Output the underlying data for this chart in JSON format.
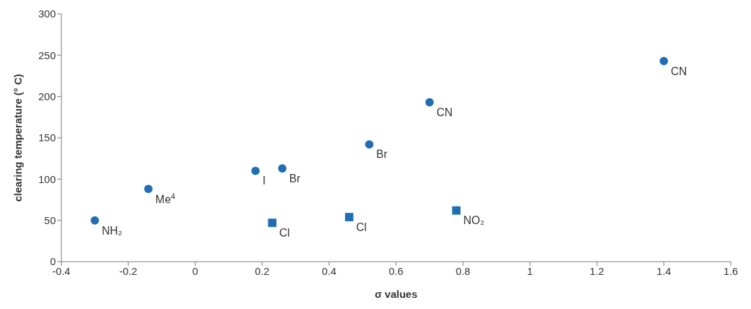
{
  "chart_data": {
    "type": "scatter",
    "xlabel": "σ values",
    "ylabel": "clearing temperature (° C)",
    "series": [
      {
        "color": "#1f6db3",
        "marker": "circle",
        "x": [
          -0.3,
          -0.14,
          0.18,
          0.26,
          0.52,
          0.7,
          1.4
        ],
        "values": [
          50,
          88,
          110,
          113,
          142,
          193,
          243
        ]
      },
      {
        "color": "#1f6db3",
        "marker": "square",
        "x": [
          0.23,
          0.46,
          0.78
        ],
        "values": [
          47,
          54,
          62
        ]
      }
    ],
    "xlim": [
      -0.4,
      1.6
    ],
    "xticks": [
      -0.4,
      -0.2,
      0,
      0.2,
      0.4,
      0.6,
      0.8,
      1,
      1.2,
      1.4,
      1.6
    ],
    "ylim": [
      0,
      300
    ],
    "yticks": [
      0,
      50,
      100,
      150,
      200,
      250,
      300
    ],
    "grid": false,
    "annotations": [
      {
        "text": "NH₂",
        "x": -0.3,
        "y": 50
      },
      {
        "text": "Me$^{4}$",
        "x": -0.14,
        "y": 88
      },
      {
        "text": "I",
        "x": 0.18,
        "y": 110
      },
      {
        "text": "Br",
        "x": 0.26,
        "y": 113
      },
      {
        "text": "Br",
        "x": 0.52,
        "y": 142
      },
      {
        "text": "CN",
        "x": 0.7,
        "y": 193
      },
      {
        "text": "CN",
        "x": 1.4,
        "y": 243
      },
      {
        "text": "Cl",
        "x": 0.23,
        "y": 47
      },
      {
        "text": "Cl",
        "x": 0.46,
        "y": 54
      },
      {
        "text": "NO₂",
        "x": 0.78,
        "y": 62
      }
    ]
  }
}
